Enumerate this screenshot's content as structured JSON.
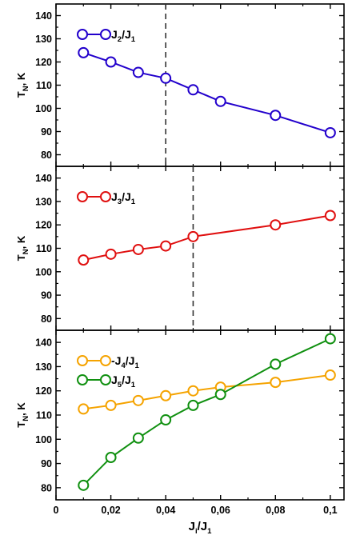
{
  "chart_data": [
    {
      "type": "line",
      "ylabel": "T",
      "ylabel_sub": "N",
      "ylabel_suffix": ", K",
      "ylim": [
        75,
        145
      ],
      "yticks": [
        80,
        90,
        100,
        110,
        120,
        130,
        140
      ],
      "xlim": [
        0,
        0.105
      ],
      "vline": 0.04,
      "grid": false,
      "legend": "top-left",
      "series": [
        {
          "name": "J2/J1",
          "legend_parts": [
            "J",
            "2",
            "/J",
            "1"
          ],
          "color": "#2200cc",
          "x": [
            0.01,
            0.02,
            0.03,
            0.04,
            0.05,
            0.06,
            0.08,
            0.1
          ],
          "values": [
            124,
            120,
            115.5,
            113,
            108,
            103,
            97,
            89.5
          ]
        }
      ]
    },
    {
      "type": "line",
      "ylabel": "T",
      "ylabel_sub": "N",
      "ylabel_suffix": ", K",
      "ylim": [
        75,
        145
      ],
      "yticks": [
        80,
        90,
        100,
        110,
        120,
        130,
        140
      ],
      "xlim": [
        0,
        0.105
      ],
      "vline": 0.05,
      "grid": false,
      "legend": "top-left",
      "series": [
        {
          "name": "J3/J1",
          "legend_parts": [
            "J",
            "3",
            "/J",
            "1"
          ],
          "color": "#e01010",
          "x": [
            0.01,
            0.02,
            0.03,
            0.04,
            0.05,
            0.08,
            0.1
          ],
          "values": [
            105,
            107.5,
            109.5,
            111,
            115,
            120,
            124
          ]
        }
      ]
    },
    {
      "type": "line",
      "ylabel": "T",
      "ylabel_sub": "N",
      "ylabel_suffix": ", K",
      "xlabel": "J",
      "xlabel_sub": "i",
      "xlabel_mid": "/J",
      "xlabel_sub2": "1",
      "ylim": [
        75,
        145
      ],
      "yticks": [
        80,
        90,
        100,
        110,
        120,
        130,
        140
      ],
      "xlim": [
        0,
        0.105
      ],
      "xticks": [
        0,
        0.02,
        0.04,
        0.06,
        0.08,
        0.1
      ],
      "xtick_labels": [
        "0",
        "0,02",
        "0,04",
        "0,06",
        "0,08",
        "0,1"
      ],
      "grid": false,
      "legend": "top-left",
      "series": [
        {
          "name": "-J4/J1",
          "legend_parts": [
            "-J",
            "4",
            "/J",
            "1"
          ],
          "color": "#f5a300",
          "x": [
            0.01,
            0.02,
            0.03,
            0.04,
            0.05,
            0.06,
            0.08,
            0.1
          ],
          "values": [
            112.5,
            114,
            116,
            118,
            120,
            121.5,
            123.5,
            126.5
          ]
        },
        {
          "name": "J5/J1",
          "legend_parts": [
            "J",
            "5",
            "/J",
            "1"
          ],
          "color": "#109010",
          "x": [
            0.01,
            0.02,
            0.03,
            0.04,
            0.05,
            0.06,
            0.08,
            0.1
          ],
          "values": [
            81,
            92.5,
            100.5,
            108,
            114,
            118.5,
            131,
            141.5
          ]
        }
      ]
    }
  ]
}
